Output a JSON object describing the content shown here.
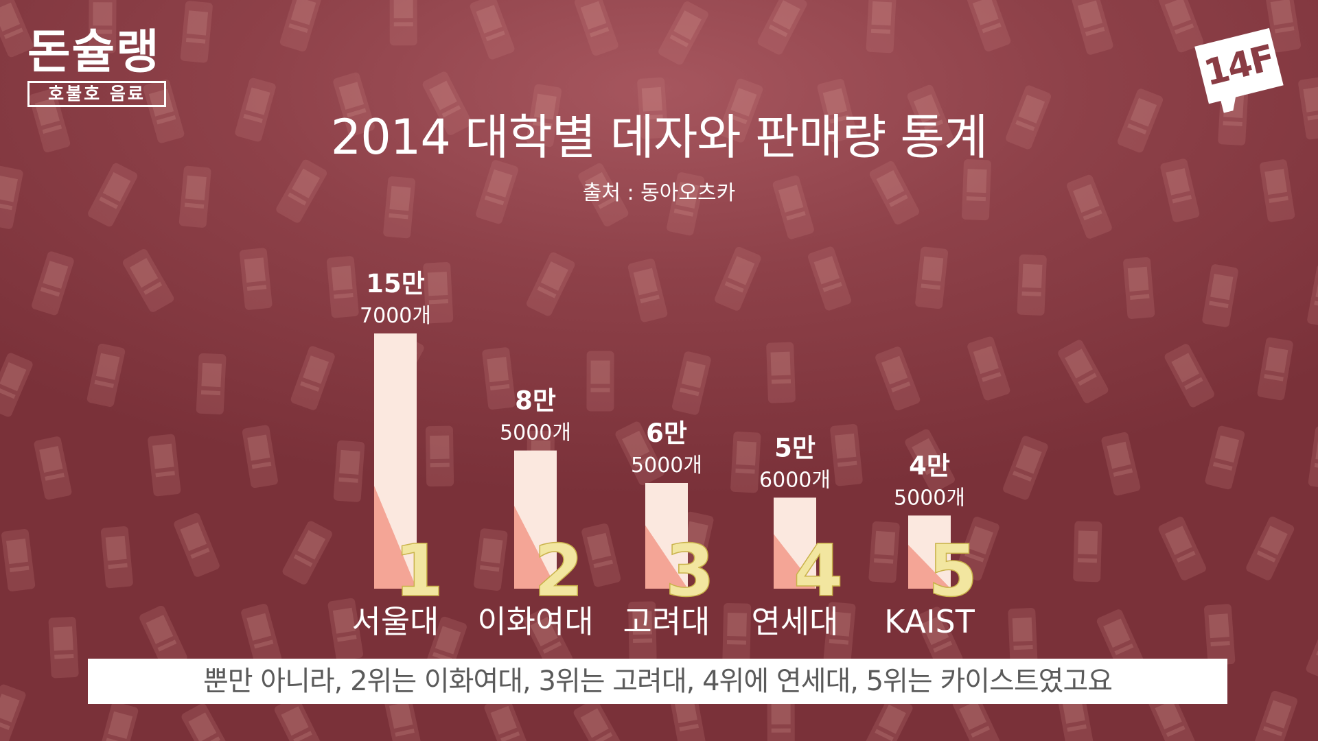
{
  "logo": {
    "title": "돈슐랭",
    "subtitle": "호불호 음료"
  },
  "brand_badge": "14F",
  "chart_data": {
    "type": "bar",
    "title": "2014 대학별 데자와 판매량 통계",
    "subtitle": "출처 : 동아오츠카",
    "categories": [
      "서울대",
      "이화여대",
      "고려대",
      "연세대",
      "KAIST"
    ],
    "ranks": [
      "1",
      "2",
      "3",
      "4",
      "5"
    ],
    "values": [
      157000,
      85000,
      65000,
      56000,
      45000
    ],
    "value_labels_main": [
      "15만",
      "8만",
      "6만",
      "5만",
      "4만"
    ],
    "value_labels_sub": [
      "7000개",
      "5000개",
      "5000개",
      "6000개",
      "5000개"
    ],
    "ylim": [
      0,
      157000
    ],
    "grid": false
  },
  "caption": "뿐만 아니라, 2위는 이화여대, 3위는 고려대, 4위에 연세대, 5위는 카이스트였고요",
  "colors": {
    "background": "#8e4149",
    "bar_light": "#fbe8df",
    "bar_dark": "#f4a596",
    "rank_number": "#f2e6a0",
    "text": "#ffffff",
    "caption_bg": "#ffffff",
    "caption_text": "#5a5a5a"
  }
}
